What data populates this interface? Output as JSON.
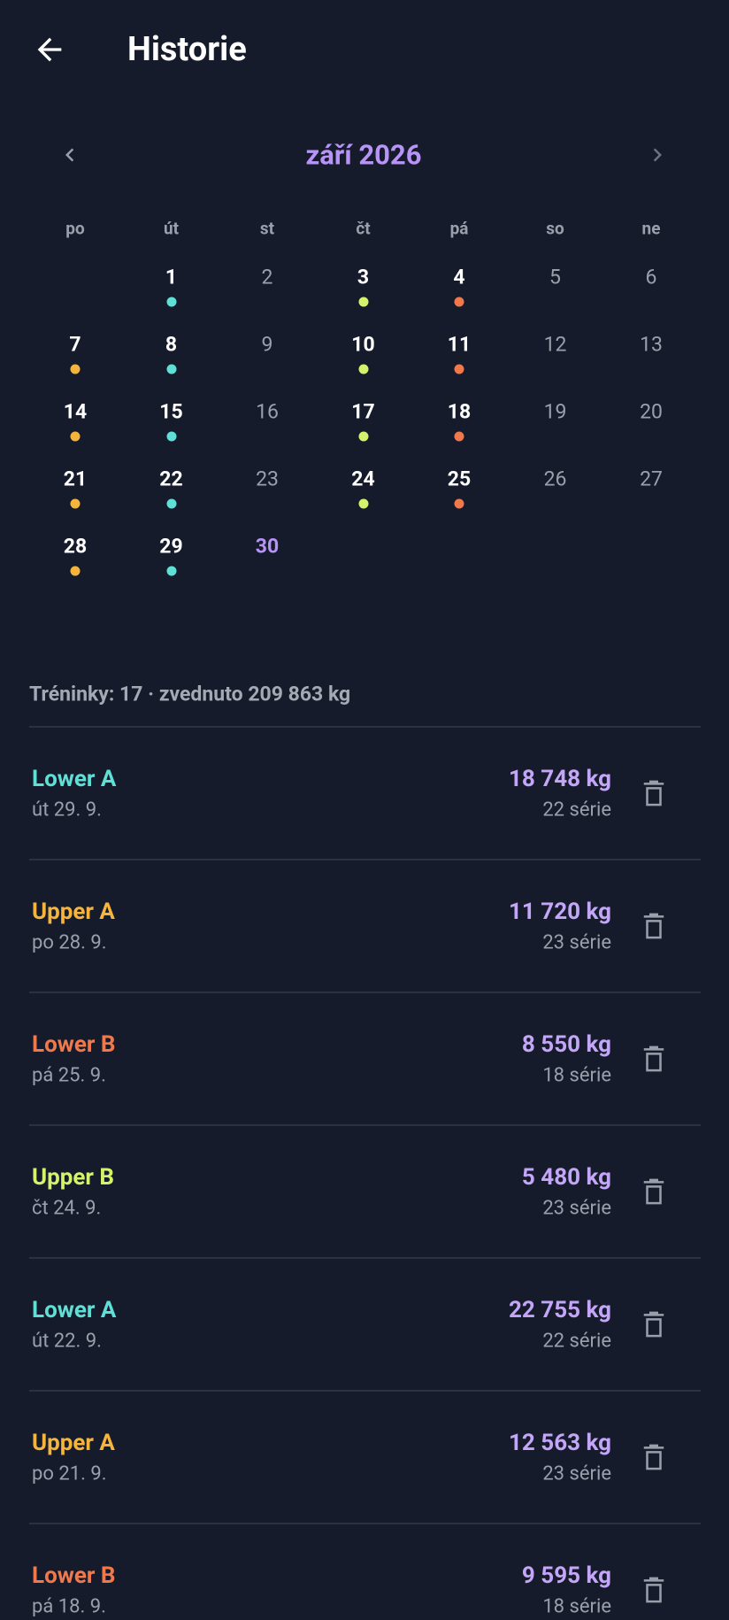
{
  "header": {
    "title": "Historie"
  },
  "calendar": {
    "month": "září 2026",
    "weekdays": [
      "po",
      "út",
      "st",
      "čt",
      "pá",
      "so",
      "ne"
    ],
    "weeks": [
      [
        null,
        {
          "day": "1",
          "dot": "#5ee0d6"
        },
        {
          "day": "2"
        },
        {
          "day": "3",
          "dot": "#d4f26a"
        },
        {
          "day": "4",
          "dot": "#f0784a"
        },
        {
          "day": "5"
        },
        {
          "day": "6"
        }
      ],
      [
        {
          "day": "7",
          "dot": "#f5b43c"
        },
        {
          "day": "8",
          "dot": "#5ee0d6"
        },
        {
          "day": "9"
        },
        {
          "day": "10",
          "dot": "#d4f26a"
        },
        {
          "day": "11",
          "dot": "#f0784a"
        },
        {
          "day": "12"
        },
        {
          "day": "13"
        }
      ],
      [
        {
          "day": "14",
          "dot": "#f5b43c"
        },
        {
          "day": "15",
          "dot": "#5ee0d6"
        },
        {
          "day": "16"
        },
        {
          "day": "17",
          "dot": "#d4f26a"
        },
        {
          "day": "18",
          "dot": "#f0784a"
        },
        {
          "day": "19"
        },
        {
          "day": "20"
        }
      ],
      [
        {
          "day": "21",
          "dot": "#f5b43c"
        },
        {
          "day": "22",
          "dot": "#5ee0d6"
        },
        {
          "day": "23"
        },
        {
          "day": "24",
          "dot": "#d4f26a"
        },
        {
          "day": "25",
          "dot": "#f0784a"
        },
        {
          "day": "26"
        },
        {
          "day": "27"
        }
      ],
      [
        {
          "day": "28",
          "dot": "#f5b43c"
        },
        {
          "day": "29",
          "dot": "#5ee0d6"
        },
        {
          "day": "30",
          "today": true
        }
      ]
    ]
  },
  "summary": "Tréninky: 17 · zvednuto 209 863 kg",
  "workouts": [
    {
      "name": "Lower A",
      "color": "#5ee0d6",
      "date": "út 29. 9.",
      "weight": "18 748 kg",
      "sets": "22 série"
    },
    {
      "name": "Upper A",
      "color": "#f5b43c",
      "date": "po 28. 9.",
      "weight": "11 720 kg",
      "sets": "23 série"
    },
    {
      "name": "Lower B",
      "color": "#f0784a",
      "date": "pá 25. 9.",
      "weight": "8 550 kg",
      "sets": "18 série"
    },
    {
      "name": "Upper B",
      "color": "#d4f26a",
      "date": "čt 24. 9.",
      "weight": "5 480 kg",
      "sets": "23 série"
    },
    {
      "name": "Lower A",
      "color": "#5ee0d6",
      "date": "út 22. 9.",
      "weight": "22 755 kg",
      "sets": "22 série"
    },
    {
      "name": "Upper A",
      "color": "#f5b43c",
      "date": "po 21. 9.",
      "weight": "12 563 kg",
      "sets": "23 série"
    },
    {
      "name": "Lower B",
      "color": "#f0784a",
      "date": "pá 18. 9.",
      "weight": "9 595 kg",
      "sets": "18 série"
    }
  ]
}
